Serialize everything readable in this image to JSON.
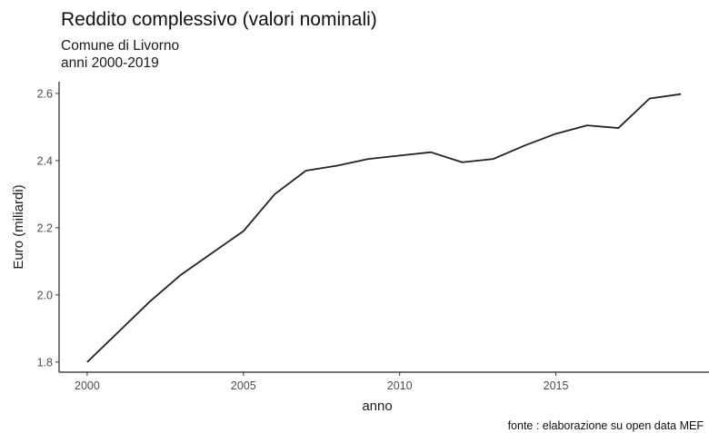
{
  "title": "Reddito complessivo (valori nominali)",
  "subtitle": [
    "Comune di Livorno",
    "anni 2000-2019"
  ],
  "caption": "fonte : elaborazione su open data MEF",
  "chart_data": {
    "type": "line",
    "title": "Reddito complessivo (valori nominali)",
    "xlabel": "anno",
    "ylabel": "Euro (miliardi)",
    "x": [
      2000,
      2001,
      2002,
      2003,
      2004,
      2005,
      2006,
      2007,
      2008,
      2009,
      2010,
      2011,
      2012,
      2013,
      2014,
      2015,
      2016,
      2017,
      2018,
      2019
    ],
    "series": [
      {
        "values": [
          1.8,
          1.89,
          1.98,
          2.06,
          2.125,
          2.19,
          2.3,
          2.37,
          2.385,
          2.405,
          2.415,
          2.425,
          2.395,
          2.405,
          2.445,
          2.48,
          2.505,
          2.497,
          2.585,
          2.598
        ]
      }
    ],
    "xlim": [
      1999.1,
      2019.9
    ],
    "ylim": [
      1.77,
      2.635
    ],
    "xticks": [
      2000,
      2005,
      2010,
      2015
    ],
    "yticks": [
      1.8,
      2.0,
      2.2,
      2.4,
      2.6
    ],
    "xtick_labels": [
      "2000",
      "2005",
      "2010",
      "2015"
    ],
    "ytick_labels": [
      "1.8",
      "2.0",
      "2.2",
      "2.4",
      "2.6"
    ],
    "grid": false,
    "line_color": "#222222"
  }
}
